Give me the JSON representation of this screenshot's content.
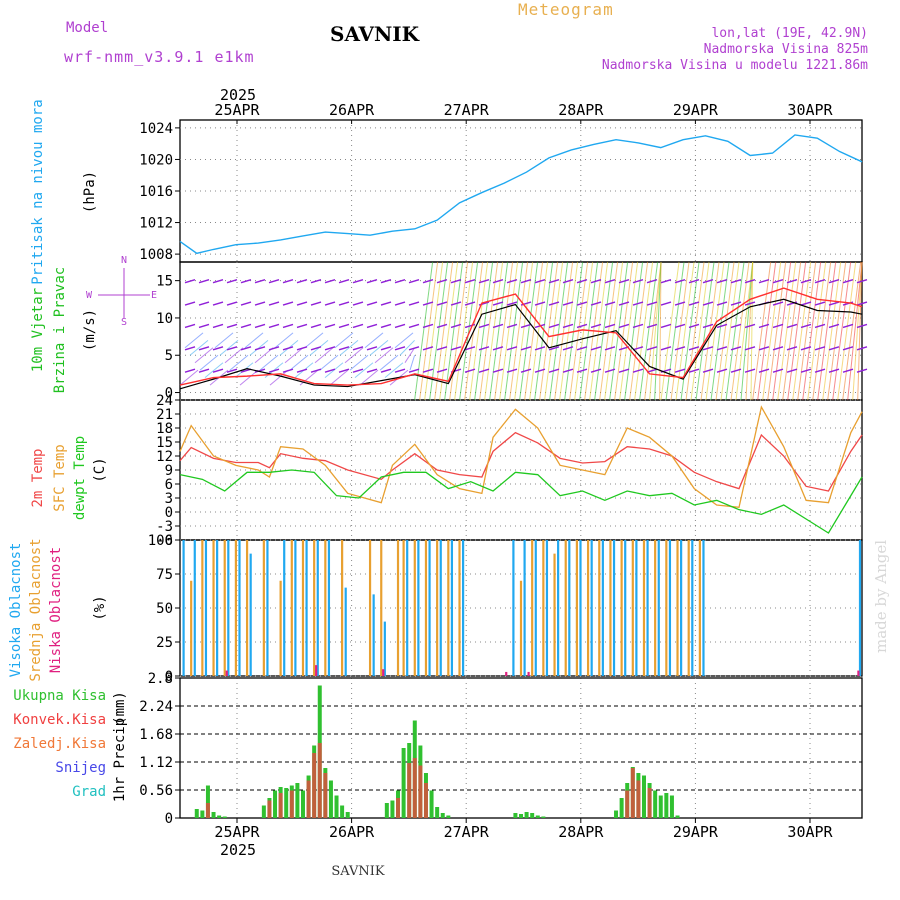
{
  "header": {
    "model_label": "Model",
    "model_name": "wrf-nmm_v3.9.1 e1km",
    "station": "SAVNIK",
    "meteogram": "Meteogram",
    "lonlat": "lon,lat (19E, 42.9N)",
    "elev": "Nadmorska Visina 825m",
    "elev_model": "Nadmorska Visina u modelu 1221.86m",
    "footer": "SAVNIK",
    "watermark": "made by Angel",
    "year": "2025"
  },
  "colors": {
    "pressure": "#20a8f0",
    "temp2m": "#f04848",
    "sfc": "#e8a030",
    "dew": "#20c820",
    "high_cloud": "#20a8f0",
    "mid_cloud": "#e8a030",
    "low_cloud": "#e02080",
    "precip": "#30c030",
    "conv": "#f04040",
    "frozen": "#f07838",
    "snow": "#4848e8",
    "grad": "#20c0c0"
  },
  "chart_data": [
    {
      "type": "line",
      "panel": "pressure",
      "ylabel": "Pritisak na nivou mora",
      "unit": "(hPa)",
      "ylim": [
        1007,
        1025
      ],
      "yticks": [
        1008,
        1012,
        1016,
        1020,
        1024
      ],
      "x_categories": [
        "25APR",
        "26APR",
        "27APR",
        "28APR",
        "29APR",
        "30APR"
      ],
      "series": [
        {
          "x": [
            0,
            0.15,
            0.3,
            0.5,
            0.7,
            0.9,
            1.1,
            1.3,
            1.5,
            1.7,
            1.9,
            2.1,
            2.3,
            2.5,
            2.7,
            2.9,
            3.1,
            3.3,
            3.5,
            3.7,
            3.9,
            4.1,
            4.3,
            4.5,
            4.7,
            4.9,
            5.1,
            5.3,
            5.5,
            5.7,
            5.9,
            6.1
          ],
          "values": [
            1009.6,
            1008.1,
            1008.6,
            1009.2,
            1009.4,
            1009.8,
            1010.3,
            1010.8,
            1010.6,
            1010.4,
            1010.9,
            1011.2,
            1012.3,
            1014.5,
            1015.8,
            1017.0,
            1018.4,
            1020.2,
            1021.2,
            1021.9,
            1022.5,
            1022.1,
            1021.5,
            1022.5,
            1023.0,
            1022.3,
            1020.5,
            1020.8,
            1023.1,
            1022.7,
            1021.0,
            1019.7
          ]
        }
      ]
    },
    {
      "type": "line",
      "panel": "wind",
      "ylabel": "10m Vjetar Brzina i Pravac",
      "unit": "(m/s)",
      "compass": [
        "N",
        "W",
        "E",
        "S"
      ],
      "ylim": [
        -1,
        17.5
      ],
      "yticks": [
        0,
        5,
        10,
        15
      ],
      "series": [
        {
          "name": "speed",
          "x": [
            0,
            0.3,
            0.6,
            0.9,
            1.2,
            1.5,
            1.8,
            2.1,
            2.4,
            2.7,
            3.0,
            3.3,
            3.6,
            3.9,
            4.2,
            4.5,
            4.8,
            5.1,
            5.4,
            5.7,
            6.0,
            6.1
          ],
          "values": [
            0.5,
            1.8,
            3.2,
            2.2,
            1.0,
            0.8,
            1.6,
            2.4,
            1.2,
            10.5,
            11.8,
            6.0,
            7.2,
            8.3,
            3.5,
            1.8,
            9.0,
            11.5,
            12.5,
            11.0,
            10.8,
            10.5
          ]
        },
        {
          "name": "gust",
          "x": [
            0,
            0.3,
            0.6,
            0.9,
            1.2,
            1.5,
            1.8,
            2.1,
            2.4,
            2.7,
            3.0,
            3.3,
            3.6,
            3.9,
            4.2,
            4.5,
            4.8,
            5.1,
            5.4,
            5.7,
            6.0,
            6.1
          ],
          "values": [
            1.0,
            2.0,
            2.2,
            2.5,
            1.2,
            1.0,
            1.2,
            2.5,
            1.5,
            12.0,
            13.2,
            7.5,
            8.4,
            8.0,
            2.5,
            2.0,
            9.5,
            12.5,
            14.0,
            12.5,
            12.0,
            11.5
          ]
        }
      ]
    },
    {
      "type": "line",
      "panel": "temperature",
      "ylabel": [
        "2m Temp",
        "SFC Temp",
        "dewpt Temp"
      ],
      "unit": "(C)",
      "ylim": [
        -6,
        24
      ],
      "yticks": [
        -6,
        -3,
        0,
        3,
        6,
        9,
        12,
        15,
        18,
        21,
        24
      ],
      "series": [
        {
          "name": "2m Temp",
          "x": [
            0,
            0.1,
            0.3,
            0.5,
            0.7,
            0.8,
            0.9,
            1.1,
            1.3,
            1.5,
            1.8,
            1.9,
            2.1,
            2.3,
            2.5,
            2.7,
            2.8,
            3.0,
            3.2,
            3.4,
            3.6,
            3.8,
            4.0,
            4.2,
            4.4,
            4.6,
            4.8,
            5.0,
            5.2,
            5.4,
            5.6,
            5.8,
            6.0,
            6.1
          ],
          "values": [
            11,
            13.8,
            11.5,
            10.6,
            10.6,
            9.5,
            12.5,
            11.5,
            11.0,
            9.0,
            7.0,
            9.0,
            12.5,
            9.0,
            8.0,
            7.5,
            13.0,
            17.0,
            14.8,
            11.5,
            10.5,
            10.8,
            14.0,
            13.5,
            12.0,
            8.5,
            6.5,
            5.0,
            16.5,
            12.0,
            5.5,
            4.5,
            13.0,
            16.5
          ]
        },
        {
          "name": "SFC Temp",
          "x": [
            0,
            0.1,
            0.3,
            0.5,
            0.7,
            0.8,
            0.9,
            1.1,
            1.3,
            1.5,
            1.8,
            1.9,
            2.1,
            2.3,
            2.5,
            2.7,
            2.8,
            3.0,
            3.2,
            3.4,
            3.6,
            3.8,
            4.0,
            4.2,
            4.4,
            4.6,
            4.8,
            5.0,
            5.2,
            5.4,
            5.6,
            5.8,
            6.0,
            6.1
          ],
          "values": [
            13,
            18.5,
            12.0,
            10.0,
            9.0,
            7.5,
            14.0,
            13.5,
            10.0,
            4.0,
            2.0,
            10.0,
            14.5,
            8.0,
            5.0,
            4.0,
            16.0,
            22.0,
            18.0,
            10.0,
            9.0,
            8.0,
            18.0,
            16.0,
            12.0,
            5.0,
            1.5,
            1.0,
            22.5,
            14.0,
            2.5,
            2.0,
            17.0,
            21.5
          ]
        },
        {
          "name": "dewpt Temp",
          "x": [
            0,
            0.2,
            0.4,
            0.6,
            0.8,
            1.0,
            1.2,
            1.4,
            1.6,
            1.8,
            2.0,
            2.2,
            2.4,
            2.6,
            2.8,
            3.0,
            3.2,
            3.4,
            3.6,
            3.8,
            4.0,
            4.2,
            4.4,
            4.6,
            4.8,
            5.0,
            5.2,
            5.4,
            5.6,
            5.8,
            5.95,
            6.1
          ],
          "values": [
            8.0,
            7.0,
            4.5,
            8.5,
            8.5,
            9.0,
            8.5,
            3.5,
            3.0,
            7.5,
            8.5,
            8.5,
            5.0,
            6.5,
            4.5,
            8.5,
            8.0,
            3.5,
            4.5,
            2.5,
            4.5,
            3.5,
            4.0,
            1.5,
            2.5,
            0.5,
            -0.5,
            1.5,
            -1.5,
            -4.5,
            1.5,
            7.5
          ]
        }
      ]
    },
    {
      "type": "bar",
      "panel": "cloud",
      "ylabel": [
        "Visoka Oblacnost",
        "Srednja Oblacnost",
        "Niska Oblacnost"
      ],
      "unit": "(%)",
      "ylim": [
        0,
        100
      ],
      "yticks": [
        0,
        25,
        50,
        75,
        100
      ],
      "series": [
        {
          "name": "Visoka Oblacnost",
          "x": [
            0.05,
            0.15,
            0.25,
            0.35,
            0.45,
            0.55,
            0.65,
            0.8,
            0.95,
            1.05,
            1.15,
            1.25,
            1.35,
            1.5,
            1.75,
            1.85,
            2.05,
            2.15,
            2.25,
            2.35,
            2.45,
            2.55,
            3.0,
            3.1,
            3.2,
            3.3,
            3.4,
            3.5,
            3.6,
            3.7,
            3.8,
            3.9,
            4.0,
            4.1,
            4.2,
            4.3,
            4.4,
            4.5,
            4.6,
            4.7,
            6.1
          ],
          "values": [
            100,
            100,
            100,
            100,
            100,
            100,
            90,
            100,
            100,
            100,
            100,
            100,
            100,
            65,
            60,
            40,
            100,
            100,
            100,
            100,
            100,
            100,
            100,
            100,
            100,
            100,
            100,
            100,
            100,
            100,
            100,
            100,
            100,
            100,
            100,
            100,
            100,
            100,
            100,
            100,
            100
          ]
        },
        {
          "name": "Srednja Oblacnost",
          "x": [
            0.1,
            0.2,
            0.3,
            0.4,
            0.5,
            0.6,
            0.75,
            0.9,
            1.0,
            1.1,
            1.2,
            1.3,
            1.45,
            1.7,
            1.8,
            1.95,
            2.0,
            2.1,
            2.2,
            2.3,
            2.4,
            2.5,
            3.05,
            3.15,
            3.25,
            3.35,
            3.45,
            3.55,
            3.65,
            3.75,
            3.85,
            3.95,
            4.05,
            4.15,
            4.25,
            4.35,
            4.45,
            4.55,
            4.65
          ],
          "values": [
            70,
            100,
            100,
            100,
            100,
            100,
            100,
            70,
            100,
            100,
            100,
            100,
            100,
            100,
            100,
            100,
            100,
            100,
            100,
            100,
            100,
            100,
            70,
            100,
            100,
            90,
            100,
            100,
            100,
            100,
            100,
            100,
            100,
            100,
            100,
            100,
            100,
            100,
            100
          ]
        },
        {
          "name": "Niska Oblacnost",
          "x": [
            0.4,
            1.2,
            1.8,
            2.9,
            3.1,
            6.05
          ],
          "values": [
            4,
            8,
            5,
            3,
            3,
            4
          ]
        }
      ]
    },
    {
      "type": "bar",
      "panel": "precip",
      "ylabel": "1hr Precip",
      "unit": "(mm)",
      "legend": [
        "Ukupna Kisa",
        "Konvek.Kisa",
        "Zaledj.Kisa",
        "Snijeg",
        "Grad"
      ],
      "ylim": [
        0,
        2.8
      ],
      "yticks": [
        0,
        0.56,
        1.12,
        1.68,
        2.24,
        2.8
      ],
      "series": [
        {
          "name": "Ukupna Kisa",
          "x": [
            0.15,
            0.2,
            0.25,
            0.3,
            0.35,
            0.4,
            0.75,
            0.8,
            0.85,
            0.9,
            0.95,
            1.0,
            1.05,
            1.1,
            1.15,
            1.2,
            1.25,
            1.3,
            1.35,
            1.4,
            1.45,
            1.5,
            1.85,
            1.9,
            1.95,
            2.0,
            2.05,
            2.1,
            2.15,
            2.2,
            2.25,
            2.3,
            2.35,
            2.4,
            3.0,
            3.05,
            3.1,
            3.15,
            3.2,
            3.25,
            3.9,
            3.95,
            4.0,
            4.05,
            4.1,
            4.15,
            4.2,
            4.25,
            4.3,
            4.35,
            4.4,
            4.45
          ],
          "values": [
            0.18,
            0.15,
            0.65,
            0.12,
            0.05,
            0.03,
            0.25,
            0.4,
            0.55,
            0.62,
            0.6,
            0.65,
            0.7,
            0.55,
            0.85,
            1.45,
            2.65,
            1.0,
            0.75,
            0.45,
            0.25,
            0.12,
            0.3,
            0.35,
            0.55,
            1.4,
            1.5,
            1.95,
            1.45,
            0.9,
            0.55,
            0.22,
            0.1,
            0.05,
            0.1,
            0.08,
            0.12,
            0.1,
            0.05,
            0.03,
            0.15,
            0.4,
            0.7,
            1.02,
            0.9,
            0.85,
            0.7,
            0.55,
            0.45,
            0.5,
            0.45,
            0.05
          ]
        },
        {
          "name": "Konvek.Kisa",
          "x": [
            0.25,
            0.8,
            0.9,
            1.0,
            1.15,
            1.2,
            1.25,
            1.3,
            1.95,
            2.05,
            2.1,
            2.15,
            2.2,
            4.0,
            4.05,
            4.1,
            4.2
          ],
          "values": [
            0.3,
            0.35,
            0.5,
            0.55,
            0.75,
            1.3,
            1.5,
            0.9,
            0.4,
            1.1,
            1.2,
            1.05,
            0.7,
            0.55,
            1.0,
            0.75,
            0.6
          ]
        }
      ]
    }
  ]
}
